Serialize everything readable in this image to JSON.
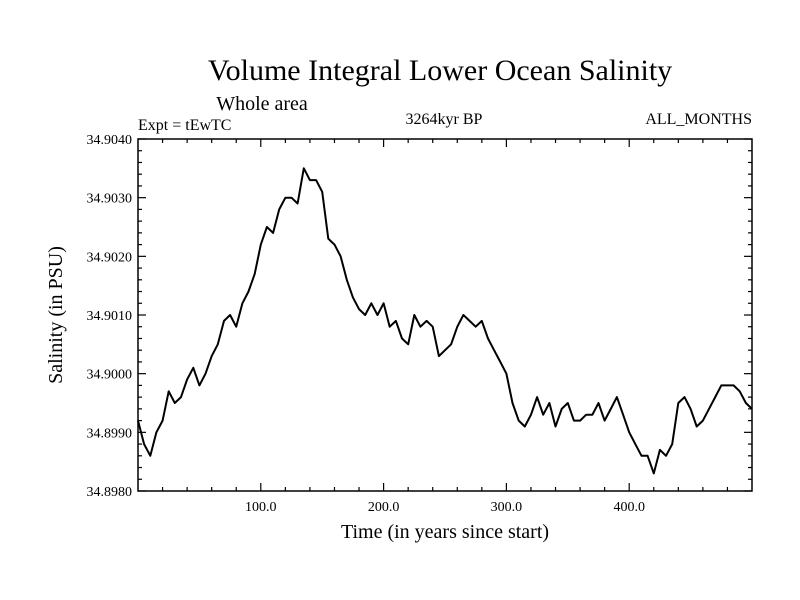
{
  "chart_data": {
    "type": "line",
    "title": "Volume Integral Lower Ocean Salinity",
    "subtitle": "Whole area",
    "left_label": "Expt = tEwTC",
    "center_label": "3264kyr BP",
    "right_label": "ALL_MONTHS",
    "xlabel": "Time (in years since start)",
    "ylabel": "Salinity (in PSU)",
    "xlim": [
      0,
      500
    ],
    "ylim": [
      34.898,
      34.904
    ],
    "xticks": [
      100,
      200,
      300,
      400
    ],
    "xtick_labels": [
      "100.0",
      "200.0",
      "300.0",
      "400.0"
    ],
    "yticks": [
      34.898,
      34.899,
      34.9,
      34.901,
      34.902,
      34.903,
      34.904
    ],
    "ytick_labels": [
      "34.8980",
      "34.8990",
      "34.9000",
      "34.9010",
      "34.9020",
      "34.9030",
      "34.9040"
    ],
    "grid": false,
    "series": [
      {
        "name": "Salinity",
        "x": [
          0,
          5,
          10,
          15,
          20,
          25,
          30,
          35,
          40,
          45,
          50,
          55,
          60,
          65,
          70,
          75,
          80,
          85,
          90,
          95,
          100,
          105,
          110,
          115,
          120,
          125,
          130,
          135,
          140,
          145,
          150,
          155,
          160,
          165,
          170,
          175,
          180,
          185,
          190,
          195,
          200,
          205,
          210,
          215,
          220,
          225,
          230,
          235,
          240,
          245,
          250,
          255,
          260,
          265,
          270,
          275,
          280,
          285,
          290,
          295,
          300,
          305,
          310,
          315,
          320,
          325,
          330,
          335,
          340,
          345,
          350,
          355,
          360,
          365,
          370,
          375,
          380,
          385,
          390,
          395,
          400,
          405,
          410,
          415,
          420,
          425,
          430,
          435,
          440,
          445,
          450,
          455,
          460,
          465,
          470,
          475,
          480,
          485,
          490,
          495,
          500
        ],
        "values": [
          34.8992,
          34.8988,
          34.8986,
          34.899,
          34.8992,
          34.8997,
          34.8995,
          34.8996,
          34.8999,
          34.9001,
          34.8998,
          34.9,
          34.9003,
          34.9005,
          34.9009,
          34.901,
          34.9008,
          34.9012,
          34.9014,
          34.9017,
          34.9022,
          34.9025,
          34.9024,
          34.9028,
          34.903,
          34.903,
          34.9029,
          34.9035,
          34.9033,
          34.9033,
          34.9031,
          34.9023,
          34.9022,
          34.902,
          34.9016,
          34.9013,
          34.9011,
          34.901,
          34.9012,
          34.901,
          34.9012,
          34.9008,
          34.9009,
          34.9006,
          34.9005,
          34.901,
          34.9008,
          34.9009,
          34.9008,
          34.9003,
          34.9004,
          34.9005,
          34.9008,
          34.901,
          34.9009,
          34.9008,
          34.9009,
          34.9006,
          34.9004,
          34.9002,
          34.9,
          34.8995,
          34.8992,
          34.8991,
          34.8993,
          34.8996,
          34.8993,
          34.8995,
          34.8991,
          34.8994,
          34.8995,
          34.8992,
          34.8992,
          34.8993,
          34.8993,
          34.8995,
          34.8992,
          34.8994,
          34.8996,
          34.8993,
          34.899,
          34.8988,
          34.8986,
          34.8986,
          34.8983,
          34.8987,
          34.8986,
          34.8988,
          34.8995,
          34.8996,
          34.8994,
          34.8991,
          34.8992,
          34.8994,
          34.8996,
          34.8998,
          34.8998,
          34.8998,
          34.8997,
          34.8995,
          34.8994
        ]
      }
    ]
  }
}
